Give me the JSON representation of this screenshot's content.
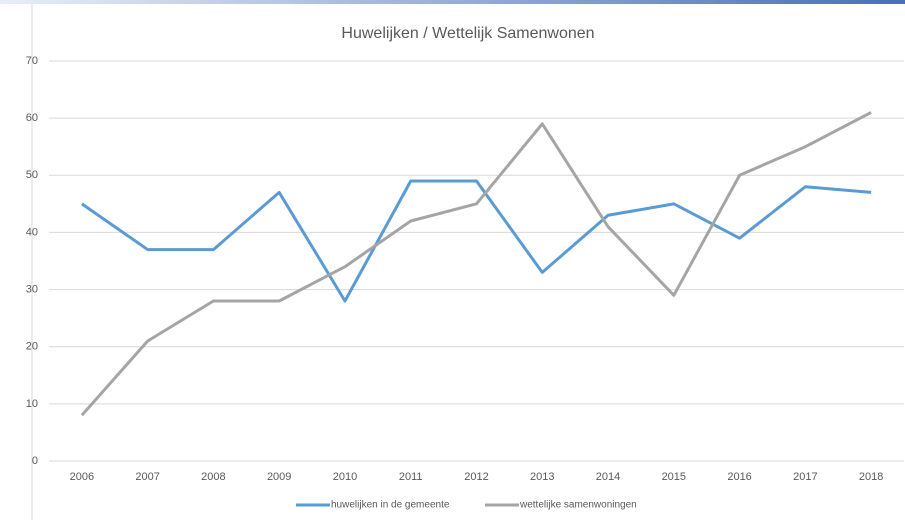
{
  "chart_data": {
    "type": "line",
    "title": "Huwelijken / Wettelijk Samenwonen",
    "categories": [
      "2006",
      "2007",
      "2008",
      "2009",
      "2010",
      "2011",
      "2012",
      "2013",
      "2014",
      "2015",
      "2016",
      "2017",
      "2018"
    ],
    "series": [
      {
        "name": "huwelijken in de gemeente",
        "color": "#5b9bd5",
        "values": [
          45,
          37,
          37,
          47,
          28,
          49,
          49,
          33,
          43,
          45,
          39,
          48,
          47
        ]
      },
      {
        "name": "wettelijke samenwoningen",
        "color": "#a5a5a5",
        "values": [
          8,
          21,
          28,
          28,
          34,
          42,
          45,
          59,
          41,
          29,
          50,
          55,
          61
        ]
      }
    ],
    "ylim": [
      0,
      70
    ],
    "yticks": [
      0,
      10,
      20,
      30,
      40,
      50,
      60,
      70
    ],
    "grid": true,
    "legend": "bottom"
  }
}
